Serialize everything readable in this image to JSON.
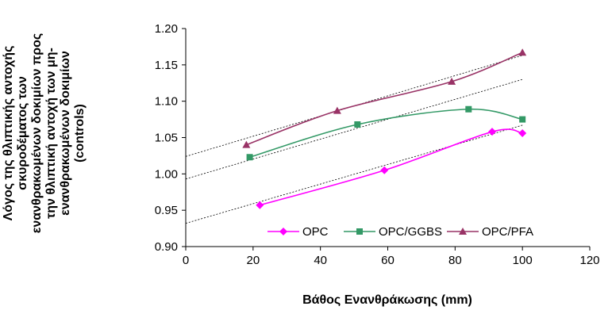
{
  "chart_data": {
    "type": "line",
    "xlabel": "Βάθος Ενανθράκωσης (mm)",
    "ylabel_lines": [
      "Λόγος της θλιπτικής αντοχής",
      "σκυροδέματος των",
      "ενανθρακωμένων δοκιμίων προς",
      "την θλιπτική αντοχή των μη-",
      "ενανθρακωμένων δοκιμίων",
      "(controls)"
    ],
    "xlim": [
      0,
      120
    ],
    "ylim": [
      0.9,
      1.2
    ],
    "x_ticks": [
      "0",
      "20",
      "40",
      "60",
      "80",
      "100",
      "120"
    ],
    "y_ticks": [
      "0.90",
      "0.95",
      "1.00",
      "1.05",
      "1.10",
      "1.15",
      "1.20"
    ],
    "grid": false,
    "legend_position": "bottom-right",
    "series": [
      {
        "name": "OPC",
        "color": "#ff00ff",
        "marker": "diamond",
        "x": [
          22,
          59,
          91,
          100
        ],
        "y": [
          0.957,
          1.005,
          1.058,
          1.056
        ]
      },
      {
        "name": "OPC/GGBS",
        "color": "#339966",
        "marker": "square",
        "x": [
          19,
          51,
          84,
          100
        ],
        "y": [
          1.023,
          1.068,
          1.089,
          1.075
        ]
      },
      {
        "name": "OPC/PFA",
        "color": "#993366",
        "marker": "triangle",
        "x": [
          18,
          45,
          79,
          100
        ],
        "y": [
          1.04,
          1.087,
          1.127,
          1.167
        ]
      }
    ],
    "trendlines": [
      {
        "of": "OPC",
        "x": [
          0,
          100
        ],
        "y": [
          0.932,
          1.067
        ]
      },
      {
        "of": "OPC/GGBS",
        "x": [
          0,
          100
        ],
        "y": [
          0.993,
          1.13
        ]
      },
      {
        "of": "OPC/PFA",
        "x": [
          0,
          100
        ],
        "y": [
          1.024,
          1.163
        ]
      }
    ]
  }
}
